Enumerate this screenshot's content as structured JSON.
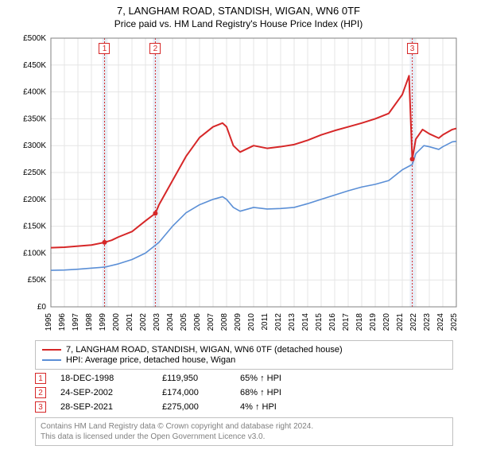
{
  "title_line1": "7, LANGHAM ROAD, STANDISH, WIGAN, WN6 0TF",
  "title_line2": "Price paid vs. HM Land Registry's House Price Index (HPI)",
  "chart": {
    "type": "line",
    "background_color": "#ffffff",
    "grid_color": "#e5e5e5",
    "axis_color": "#808080",
    "y": {
      "min": 0,
      "max": 500000,
      "step": 50000,
      "labels": [
        "£0",
        "£50K",
        "£100K",
        "£150K",
        "£200K",
        "£250K",
        "£300K",
        "£350K",
        "£400K",
        "£450K",
        "£500K"
      ],
      "label_fontsize": 10
    },
    "x": {
      "min": 1995,
      "max": 2025,
      "step": 1,
      "labels": [
        "1995",
        "1996",
        "1997",
        "1998",
        "1999",
        "2000",
        "2001",
        "2002",
        "2003",
        "2004",
        "2005",
        "2006",
        "2007",
        "2008",
        "2009",
        "2010",
        "2011",
        "2012",
        "2013",
        "2014",
        "2015",
        "2016",
        "2017",
        "2018",
        "2019",
        "2020",
        "2021",
        "2022",
        "2023",
        "2024",
        "2025"
      ],
      "label_fontsize": 10
    },
    "bands": [
      {
        "from": 1998.8,
        "to": 1999.2,
        "color": "#e8eef7"
      },
      {
        "from": 2002.55,
        "to": 2002.95,
        "color": "#e8eef7"
      },
      {
        "from": 2021.55,
        "to": 2021.95,
        "color": "#e8eef7"
      }
    ],
    "vlines": [
      {
        "x": 1998.97,
        "color": "#d62728",
        "dash": "2,2"
      },
      {
        "x": 2002.73,
        "color": "#d62728",
        "dash": "2,2"
      },
      {
        "x": 2021.74,
        "color": "#d62728",
        "dash": "2,2"
      }
    ],
    "series": [
      {
        "name": "price_paid",
        "color": "#d62728",
        "width": 2,
        "points": [
          [
            1995,
            110000
          ],
          [
            1996,
            111000
          ],
          [
            1997,
            113000
          ],
          [
            1998,
            115000
          ],
          [
            1998.97,
            119950
          ],
          [
            1999.5,
            124000
          ],
          [
            2000,
            130000
          ],
          [
            2001,
            140000
          ],
          [
            2002,
            160000
          ],
          [
            2002.73,
            174000
          ],
          [
            2003,
            190000
          ],
          [
            2004,
            235000
          ],
          [
            2005,
            280000
          ],
          [
            2006,
            315000
          ],
          [
            2007,
            335000
          ],
          [
            2007.7,
            342000
          ],
          [
            2008,
            335000
          ],
          [
            2008.5,
            300000
          ],
          [
            2009,
            288000
          ],
          [
            2010,
            300000
          ],
          [
            2011,
            295000
          ],
          [
            2012,
            298000
          ],
          [
            2013,
            302000
          ],
          [
            2014,
            310000
          ],
          [
            2015,
            320000
          ],
          [
            2016,
            328000
          ],
          [
            2017,
            335000
          ],
          [
            2018,
            342000
          ],
          [
            2019,
            350000
          ],
          [
            2020,
            360000
          ],
          [
            2021,
            395000
          ],
          [
            2021.5,
            430000
          ],
          [
            2021.74,
            275000
          ],
          [
            2022,
            312000
          ],
          [
            2022.5,
            330000
          ],
          [
            2023,
            322000
          ],
          [
            2023.7,
            314000
          ],
          [
            2024,
            320000
          ],
          [
            2024.7,
            330000
          ],
          [
            2025,
            332000
          ]
        ]
      },
      {
        "name": "hpi",
        "color": "#5b8fd6",
        "width": 1.6,
        "points": [
          [
            1995,
            68000
          ],
          [
            1996,
            68500
          ],
          [
            1997,
            70000
          ],
          [
            1998,
            72000
          ],
          [
            1999,
            74000
          ],
          [
            2000,
            80000
          ],
          [
            2001,
            88000
          ],
          [
            2002,
            100000
          ],
          [
            2003,
            120000
          ],
          [
            2004,
            150000
          ],
          [
            2005,
            175000
          ],
          [
            2006,
            190000
          ],
          [
            2007,
            200000
          ],
          [
            2007.7,
            205000
          ],
          [
            2008,
            200000
          ],
          [
            2008.5,
            185000
          ],
          [
            2009,
            178000
          ],
          [
            2010,
            185000
          ],
          [
            2011,
            182000
          ],
          [
            2012,
            183000
          ],
          [
            2013,
            185000
          ],
          [
            2014,
            192000
          ],
          [
            2015,
            200000
          ],
          [
            2016,
            208000
          ],
          [
            2017,
            216000
          ],
          [
            2018,
            223000
          ],
          [
            2019,
            228000
          ],
          [
            2020,
            235000
          ],
          [
            2021,
            255000
          ],
          [
            2021.74,
            265000
          ],
          [
            2022,
            285000
          ],
          [
            2022.6,
            300000
          ],
          [
            2023,
            298000
          ],
          [
            2023.7,
            293000
          ],
          [
            2024,
            298000
          ],
          [
            2024.7,
            307000
          ],
          [
            2025,
            308000
          ]
        ]
      }
    ],
    "markers": [
      {
        "series": "price_paid",
        "x": 1998.97,
        "y": 119950,
        "color": "#d62728",
        "r": 3
      },
      {
        "series": "price_paid",
        "x": 2002.73,
        "y": 174000,
        "color": "#d62728",
        "r": 3
      },
      {
        "series": "price_paid",
        "x": 2021.74,
        "y": 275000,
        "color": "#d62728",
        "r": 3
      }
    ],
    "callouts": [
      {
        "n": "1",
        "x": 1998.97,
        "color": "#d62728"
      },
      {
        "n": "2",
        "x": 2002.73,
        "color": "#d62728"
      },
      {
        "n": "3",
        "x": 2021.74,
        "color": "#d62728"
      }
    ]
  },
  "legend": {
    "items": [
      {
        "color": "#d62728",
        "label": "7, LANGHAM ROAD, STANDISH, WIGAN, WN6 0TF (detached house)"
      },
      {
        "color": "#5b8fd6",
        "label": "HPI: Average price, detached house, Wigan"
      }
    ]
  },
  "sales": [
    {
      "n": "1",
      "color": "#d62728",
      "date": "18-DEC-1998",
      "price": "£119,950",
      "pct": "65% ↑ HPI"
    },
    {
      "n": "2",
      "color": "#d62728",
      "date": "24-SEP-2002",
      "price": "£174,000",
      "pct": "68% ↑ HPI"
    },
    {
      "n": "3",
      "color": "#d62728",
      "date": "28-SEP-2021",
      "price": "£275,000",
      "pct": "4% ↑ HPI"
    }
  ],
  "footer": {
    "line1": "Contains HM Land Registry data © Crown copyright and database right 2024.",
    "line2": "This data is licensed under the Open Government Licence v3.0."
  }
}
